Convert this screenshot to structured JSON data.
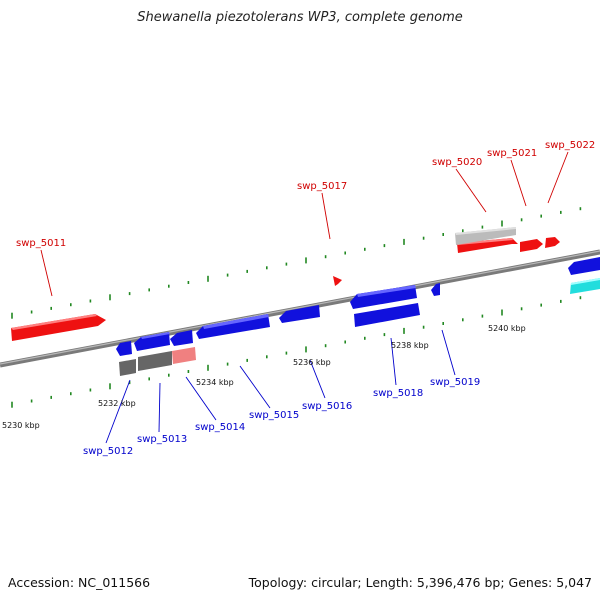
{
  "title": "Shewanella piezotolerans WP3, complete genome",
  "footer": {
    "accession": "Accession: NC_011566",
    "summary": "Topology: circular; Length: 5,396,476 bp; Genes: 5,047"
  },
  "colors": {
    "plus_strand_label": "#d00000",
    "minus_strand_label": "#0000cc",
    "backbone": "#888888",
    "tick": "#228822",
    "red_gene": "#ee1111",
    "blue_gene": "#1111dd",
    "pale_red_gene": "#f08080",
    "gray_gene": "#666666",
    "light_gray_gene": "#bbbbbb",
    "cyan_gene": "#22dddd"
  },
  "scale_labels": [
    "5230 kbp",
    "5232 kbp",
    "5234 kbp",
    "5236 kbp",
    "5238 kbp",
    "5240 kbp"
  ],
  "gene_labels_top": [
    "swp_5011",
    "swp_5017",
    "swp_5020",
    "swp_5021",
    "swp_5022"
  ],
  "gene_labels_bottom": [
    "swp_5012",
    "swp_5013",
    "swp_5014",
    "swp_5015",
    "swp_5016",
    "swp_5018",
    "swp_5019"
  ]
}
